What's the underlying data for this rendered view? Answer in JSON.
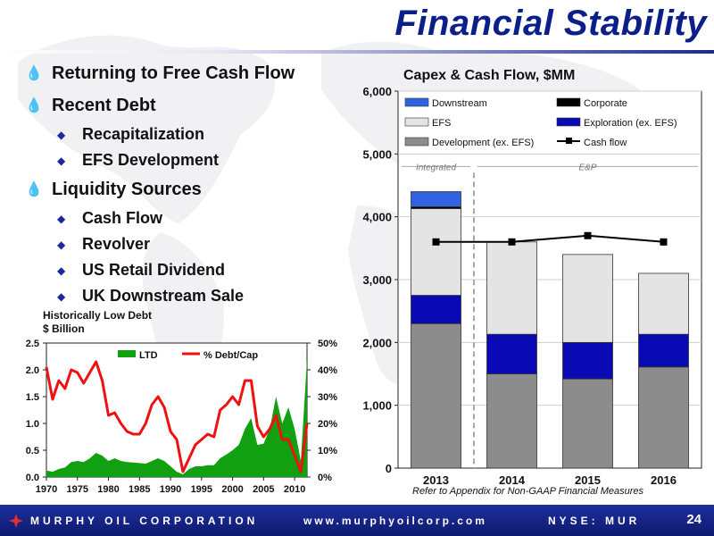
{
  "slide": {
    "title": "Financial Stability",
    "bullets": [
      {
        "text": "Returning to Free Cash Flow",
        "subs": []
      },
      {
        "text": "Recent Debt",
        "subs": [
          "Recapitalization",
          "EFS Development"
        ]
      },
      {
        "text": "Liquidity Sources",
        "subs": [
          "Cash Flow",
          "Revolver",
          "US Retail Dividend",
          "UK Downstream Sale"
        ]
      }
    ],
    "footnote": "Refer to Appendix for Non-GAAP Financial Measures"
  },
  "footer": {
    "company": "MURPHY OIL CORPORATION",
    "website": "www.murphyoilcorp.com",
    "ticker": "NYSE: MUR",
    "page": "24"
  },
  "colors": {
    "title": "#0b1f8a",
    "ltd": "#11a011",
    "debt_cap": "#ee1111",
    "downstream": "#2f63e0",
    "corporate": "#000000",
    "efs": "#e4e4e4",
    "exploration": "#0a0ab4",
    "development": "#8c8c8c",
    "cash_flow": "#000000"
  },
  "chart_data": [
    {
      "type": "area",
      "title": "Historically Low Debt",
      "subtitle": "$ Billion",
      "x": [
        1970,
        1971,
        1972,
        1973,
        1974,
        1975,
        1976,
        1977,
        1978,
        1979,
        1980,
        1981,
        1982,
        1983,
        1984,
        1985,
        1986,
        1987,
        1988,
        1989,
        1990,
        1991,
        1992,
        1993,
        1994,
        1995,
        1996,
        1997,
        1998,
        1999,
        2000,
        2001,
        2002,
        2003,
        2004,
        2005,
        2006,
        2007,
        2008,
        2009,
        2010,
        2011,
        2012
      ],
      "series": [
        {
          "name": "LTD",
          "type": "area",
          "axis": "left",
          "values": [
            0.12,
            0.1,
            0.15,
            0.18,
            0.28,
            0.3,
            0.28,
            0.35,
            0.45,
            0.4,
            0.3,
            0.35,
            0.3,
            0.28,
            0.27,
            0.26,
            0.25,
            0.3,
            0.35,
            0.3,
            0.2,
            0.1,
            0.05,
            0.15,
            0.2,
            0.2,
            0.22,
            0.22,
            0.35,
            0.42,
            0.5,
            0.6,
            0.9,
            1.1,
            0.6,
            0.62,
            0.9,
            1.5,
            1.0,
            1.3,
            0.9,
            0.3,
            2.2
          ]
        },
        {
          "name": "% Debt/Cap",
          "type": "line",
          "axis": "right",
          "values": [
            41,
            29,
            36,
            33,
            40,
            39,
            35,
            39,
            43,
            36,
            23,
            24,
            20,
            17,
            16,
            16,
            20,
            27,
            30,
            26,
            17,
            14,
            2,
            7,
            12,
            14,
            16,
            15,
            25,
            27,
            30,
            27,
            36,
            36,
            19,
            15,
            18,
            23,
            14,
            14,
            8,
            2,
            20
          ]
        }
      ],
      "ylim_left": [
        0,
        2.5
      ],
      "yticks_left": [
        "0.0",
        "0.5",
        "1.0",
        "1.5",
        "2.0",
        "2.5"
      ],
      "ylim_right": [
        0,
        50
      ],
      "yticks_right": [
        "0%",
        "10%",
        "20%",
        "30%",
        "40%",
        "50%"
      ],
      "xticks": [
        "1970",
        "1975",
        "1980",
        "1985",
        "1990",
        "1995",
        "2000",
        "2005",
        "2010"
      ],
      "legend": "top"
    },
    {
      "type": "bar",
      "title": "Capex & Cash Flow, $MM",
      "categories": [
        "2013",
        "2014",
        "2015",
        "2016"
      ],
      "series": [
        {
          "name": "Development (ex. EFS)",
          "values": [
            2300,
            1500,
            1420,
            1610
          ]
        },
        {
          "name": "Exploration (ex. EFS)",
          "values": [
            450,
            630,
            580,
            520
          ]
        },
        {
          "name": "EFS",
          "values": [
            1380,
            1470,
            1400,
            970
          ]
        },
        {
          "name": "Corporate",
          "values": [
            30,
            0,
            0,
            0
          ]
        },
        {
          "name": "Downstream",
          "values": [
            240,
            0,
            0,
            0
          ]
        },
        {
          "name": "Cash flow",
          "type": "line",
          "values": [
            3600,
            3600,
            3700,
            3600
          ]
        }
      ],
      "ylim": [
        0,
        6000
      ],
      "yticks": [
        "0",
        "1,000",
        "2,000",
        "3,000",
        "4,000",
        "5,000",
        "6,000"
      ],
      "annotations": [
        "Integrated",
        "E&P"
      ],
      "legend": "top"
    }
  ]
}
